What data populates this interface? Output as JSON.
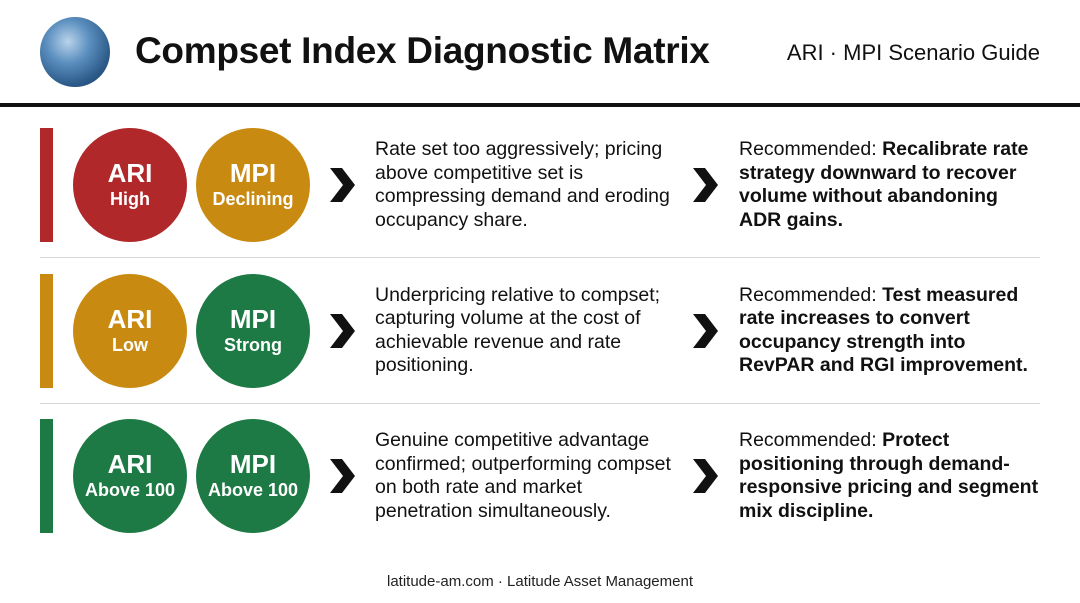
{
  "header": {
    "title": "Compset Index Diagnostic Matrix",
    "subtitle": "ARI · MPI Scenario Guide"
  },
  "rows": [
    {
      "ari": {
        "label": "ARI",
        "level": "High",
        "color": "#b0282a"
      },
      "mpi": {
        "label": "MPI",
        "level": "Declining",
        "color": "#c98a12"
      },
      "diagnosis": "Rate set too aggressively; pricing above competitive set is compressing demand and eroding occupancy share.",
      "recommendation": {
        "prefix": "Recommended:",
        "action": "Recalibrate rate strategy downward to recover volume without abandoning ADR gains."
      }
    },
    {
      "ari": {
        "label": "ARI",
        "level": "Low",
        "color": "#c98a12"
      },
      "mpi": {
        "label": "MPI",
        "level": "Strong",
        "color": "#1e7a45"
      },
      "diagnosis": "Underpricing relative to compset; capturing volume at the cost of achievable revenue and rate positioning.",
      "recommendation": {
        "prefix": "Recommended:",
        "action": "Test measured rate increases to convert occupancy strength into RevPAR and RGI improvement."
      }
    },
    {
      "ari": {
        "label": "ARI",
        "level": "Above 100",
        "color": "#1e7a45"
      },
      "mpi": {
        "label": "MPI",
        "level": "Above 100",
        "color": "#1e7a45"
      },
      "diagnosis": "Genuine competitive advantage confirmed; outperforming compset on both rate and market penetration simultaneously.",
      "recommendation": {
        "prefix": "Recommended:",
        "action": "Protect positioning through demand-responsive pricing and segment mix discipline."
      }
    }
  ],
  "footer": "latitude-am.com · Latitude Asset Management"
}
